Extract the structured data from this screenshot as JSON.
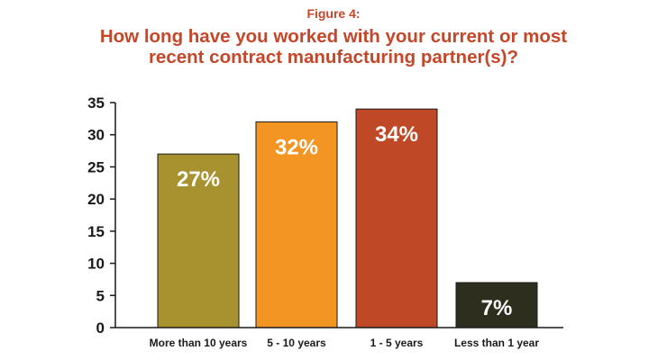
{
  "header": {
    "figure_label": "Figure 4:",
    "title_line1": "How long have you worked with your current or most",
    "title_line2": "recent contract manufacturing partner(s)?"
  },
  "chart_data": {
    "type": "bar",
    "categories": [
      "More than 10 years",
      "5 - 10 years",
      "1 - 5 years",
      "Less than 1 year"
    ],
    "values": [
      27,
      32,
      34,
      7
    ],
    "value_labels": [
      "27%",
      "32%",
      "34%",
      "7%"
    ],
    "bar_colors": [
      "#a8922f",
      "#f39522",
      "#bf4826",
      "#2e2e1f"
    ],
    "ylim": [
      0,
      35
    ],
    "yticks": [
      0,
      5,
      10,
      15,
      20,
      25,
      30,
      35
    ],
    "grid": false,
    "xlabel": "",
    "ylabel": ""
  },
  "colors": {
    "title": "#c4472a",
    "axis": "#1a1a1a",
    "value_label": "#ffffff"
  }
}
